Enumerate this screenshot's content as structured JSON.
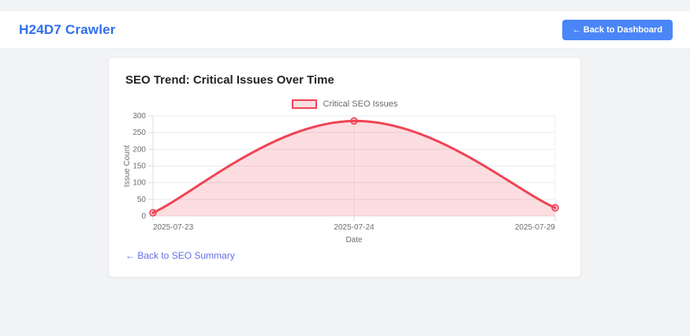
{
  "header": {
    "title": "H24D7 Crawler",
    "back_button_label": "← Back to Dashboard"
  },
  "card": {
    "title": "SEO Trend: Critical Issues Over Time",
    "footer_link_label": "← Back to SEO Summary"
  },
  "colors": {
    "page_bg": "#f1f3f4",
    "accent_blue": "#2f6fed",
    "button_blue": "#4a86f7",
    "line_red": "#ef4455",
    "fill_pink": "rgba(239,68,85,0.18)",
    "marker_fill": "rgba(239,68,85,0.25)",
    "grid_gray": "#e9e9ec",
    "tick_text": "#6b6f73",
    "link_purple": "#6170e8"
  },
  "chart_data": {
    "type": "area",
    "title": "",
    "series": [
      {
        "name": "Critical SEO Issues",
        "values": [
          10,
          285,
          25
        ]
      }
    ],
    "categories": [
      "2025-07-23",
      "2025-07-24",
      "2025-07-29"
    ],
    "xlabel": "Date",
    "ylabel": "Issue Count",
    "ylim": [
      0,
      300
    ],
    "yticks": [
      0,
      50,
      100,
      150,
      200,
      250,
      300
    ],
    "legend_position": "top",
    "grid": true,
    "smooth": true,
    "area_fill": true
  }
}
